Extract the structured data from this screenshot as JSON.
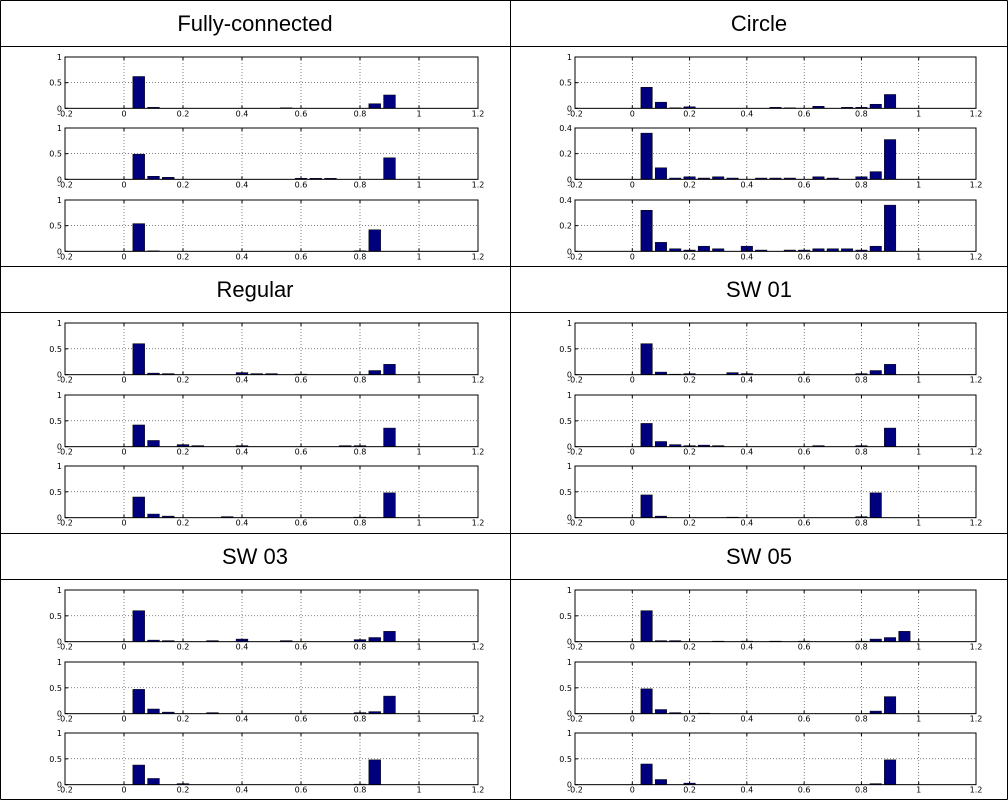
{
  "colors": {
    "bar": "#00007f",
    "bar_edge": "#000000",
    "grid": "#000000",
    "border": "#000000"
  },
  "layout": {
    "rows": 3,
    "cols": 2,
    "panels_per_cell": 3
  },
  "cells": [
    {
      "title": "Fully-connected"
    },
    {
      "title": "Circle"
    },
    {
      "title": "Regular"
    },
    {
      "title": "SW 01"
    },
    {
      "title": "SW 03"
    },
    {
      "title": "SW 05"
    }
  ],
  "chart_data": [
    {
      "type": "bar",
      "title": "Fully-connected",
      "x": [
        0.05,
        0.1,
        0.15,
        0.2,
        0.25,
        0.3,
        0.35,
        0.4,
        0.45,
        0.5,
        0.55,
        0.6,
        0.65,
        0.7,
        0.75,
        0.8,
        0.85,
        0.9,
        0.95
      ],
      "xlim": [
        -0.2,
        1.2
      ],
      "xticks": [
        "-0.2",
        "0",
        "0.2",
        "0.4",
        "0.6",
        "0.8",
        "1",
        "1.2"
      ],
      "panels": [
        {
          "ylim": [
            0,
            1
          ],
          "yticks": [
            "0",
            "0.5",
            "1"
          ],
          "values": [
            0.62,
            0.02,
            0,
            0,
            0,
            0,
            0,
            0,
            0,
            0,
            0.01,
            0,
            0,
            0,
            0,
            0,
            0.09,
            0.26,
            0
          ]
        },
        {
          "ylim": [
            0,
            1
          ],
          "yticks": [
            "0",
            "0.5",
            "1"
          ],
          "values": [
            0.49,
            0.06,
            0.04,
            0,
            0,
            0,
            0,
            0,
            0,
            0,
            0,
            0.02,
            0.02,
            0.02,
            0,
            0,
            0,
            0.42,
            0
          ]
        },
        {
          "ylim": [
            0,
            1
          ],
          "yticks": [
            "0",
            "0.5",
            "1"
          ],
          "values": [
            0.54,
            0.01,
            0,
            0,
            0,
            0,
            0,
            0,
            0,
            0,
            0,
            0,
            0,
            0,
            0,
            0.01,
            0.42,
            0,
            0
          ]
        }
      ]
    },
    {
      "type": "bar",
      "title": "Circle",
      "x": [
        0.05,
        0.1,
        0.15,
        0.2,
        0.25,
        0.3,
        0.35,
        0.4,
        0.45,
        0.5,
        0.55,
        0.6,
        0.65,
        0.7,
        0.75,
        0.8,
        0.85,
        0.9,
        0.95
      ],
      "xlim": [
        -0.2,
        1.2
      ],
      "xticks": [
        "-0.2",
        "0",
        "0.2",
        "0.4",
        "0.6",
        "0.8",
        "1",
        "1.2"
      ],
      "panels": [
        {
          "ylim": [
            0,
            1
          ],
          "yticks": [
            "0",
            "0.5",
            "1"
          ],
          "values": [
            0.41,
            0.12,
            0.01,
            0.03,
            0,
            0,
            0,
            0,
            0,
            0.02,
            0.01,
            0,
            0.04,
            0,
            0.02,
            0.02,
            0.08,
            0.27,
            0
          ]
        },
        {
          "ylim": [
            0,
            0.4
          ],
          "yticks": [
            "0",
            "0.2",
            "0.4"
          ],
          "values": [
            0.36,
            0.09,
            0.01,
            0.02,
            0.01,
            0.02,
            0.01,
            0,
            0.01,
            0.01,
            0.01,
            0,
            0.02,
            0.01,
            0,
            0.02,
            0.06,
            0.31,
            0
          ]
        },
        {
          "ylim": [
            0,
            0.4
          ],
          "yticks": [
            "0",
            "0.2",
            "0.4"
          ],
          "values": [
            0.32,
            0.07,
            0.02,
            0.01,
            0.04,
            0.02,
            0,
            0.04,
            0.01,
            0,
            0.01,
            0.01,
            0.02,
            0.02,
            0.02,
            0.01,
            0.04,
            0.36,
            0
          ]
        }
      ]
    },
    {
      "type": "bar",
      "title": "Regular",
      "x": [
        0.05,
        0.1,
        0.15,
        0.2,
        0.25,
        0.3,
        0.35,
        0.4,
        0.45,
        0.5,
        0.55,
        0.6,
        0.65,
        0.7,
        0.75,
        0.8,
        0.85,
        0.9,
        0.95
      ],
      "xlim": [
        -0.2,
        1.2
      ],
      "xticks": [
        "-0.2",
        "0",
        "0.2",
        "0.4",
        "0.6",
        "0.8",
        "1",
        "1.2"
      ],
      "panels": [
        {
          "ylim": [
            0,
            1
          ],
          "yticks": [
            "0",
            "0.5",
            "1"
          ],
          "values": [
            0.6,
            0.03,
            0.02,
            0,
            0,
            0,
            0,
            0.04,
            0.02,
            0.02,
            0,
            0.01,
            0,
            0,
            0,
            0,
            0.08,
            0.2,
            0
          ]
        },
        {
          "ylim": [
            0,
            1
          ],
          "yticks": [
            "0",
            "0.5",
            "1"
          ],
          "values": [
            0.42,
            0.12,
            0,
            0.04,
            0.02,
            0,
            0,
            0.02,
            0,
            0,
            0,
            0,
            0,
            0,
            0.02,
            0.02,
            0,
            0.36,
            0
          ]
        },
        {
          "ylim": [
            0,
            1
          ],
          "yticks": [
            "0",
            "0.5",
            "1"
          ],
          "values": [
            0.4,
            0.07,
            0.03,
            0,
            0,
            0,
            0.02,
            0,
            0,
            0,
            0,
            0,
            0,
            0,
            0,
            0.01,
            0,
            0.48,
            0
          ]
        }
      ]
    },
    {
      "type": "bar",
      "title": "SW 01",
      "x": [
        0.05,
        0.1,
        0.15,
        0.2,
        0.25,
        0.3,
        0.35,
        0.4,
        0.45,
        0.5,
        0.55,
        0.6,
        0.65,
        0.7,
        0.75,
        0.8,
        0.85,
        0.9,
        0.95
      ],
      "xlim": [
        -0.2,
        1.2
      ],
      "xticks": [
        "-0.2",
        "0",
        "0.2",
        "0.4",
        "0.6",
        "0.8",
        "1",
        "1.2"
      ],
      "panels": [
        {
          "ylim": [
            0,
            1
          ],
          "yticks": [
            "0",
            "0.5",
            "1"
          ],
          "values": [
            0.6,
            0.05,
            0.01,
            0.02,
            0,
            0,
            0.04,
            0.02,
            0,
            0,
            0,
            0.01,
            0,
            0,
            0,
            0.02,
            0.08,
            0.2,
            0
          ]
        },
        {
          "ylim": [
            0,
            1
          ],
          "yticks": [
            "0",
            "0.5",
            "1"
          ],
          "values": [
            0.45,
            0.1,
            0.04,
            0.02,
            0.03,
            0.02,
            0,
            0,
            0,
            0,
            0,
            0,
            0.02,
            0,
            0,
            0.02,
            0,
            0.36,
            0
          ]
        },
        {
          "ylim": [
            0,
            1
          ],
          "yticks": [
            "0",
            "0.5",
            "1"
          ],
          "values": [
            0.44,
            0.03,
            0,
            0,
            0,
            0,
            0.01,
            0,
            0,
            0,
            0,
            0,
            0,
            0,
            0,
            0.02,
            0.48,
            0,
            0
          ]
        }
      ]
    },
    {
      "type": "bar",
      "title": "SW 03",
      "x": [
        0.05,
        0.1,
        0.15,
        0.2,
        0.25,
        0.3,
        0.35,
        0.4,
        0.45,
        0.5,
        0.55,
        0.6,
        0.65,
        0.7,
        0.75,
        0.8,
        0.85,
        0.9,
        0.95
      ],
      "xlim": [
        -0.2,
        1.2
      ],
      "xticks": [
        "-0.2",
        "0",
        "0.2",
        "0.4",
        "0.6",
        "0.8",
        "1",
        "1.2"
      ],
      "panels": [
        {
          "ylim": [
            0,
            1
          ],
          "yticks": [
            "0",
            "0.5",
            "1"
          ],
          "values": [
            0.6,
            0.03,
            0.02,
            0,
            0,
            0.02,
            0,
            0.05,
            0,
            0,
            0.02,
            0,
            0,
            0,
            0,
            0.04,
            0.08,
            0.2,
            0
          ]
        },
        {
          "ylim": [
            0,
            1
          ],
          "yticks": [
            "0",
            "0.5",
            "1"
          ],
          "values": [
            0.47,
            0.09,
            0.03,
            0,
            0,
            0.02,
            0,
            0,
            0,
            0,
            0,
            0,
            0,
            0,
            0,
            0.02,
            0.04,
            0.34,
            0
          ]
        },
        {
          "ylim": [
            0,
            1
          ],
          "yticks": [
            "0",
            "0.5",
            "1"
          ],
          "values": [
            0.38,
            0.12,
            0,
            0.02,
            0,
            0,
            0,
            0,
            0,
            0,
            0,
            0,
            0,
            0,
            0,
            0.01,
            0.48,
            0,
            0
          ]
        }
      ]
    },
    {
      "type": "bar",
      "title": "SW 05",
      "x": [
        0.05,
        0.1,
        0.15,
        0.2,
        0.25,
        0.3,
        0.35,
        0.4,
        0.45,
        0.5,
        0.55,
        0.6,
        0.65,
        0.7,
        0.75,
        0.8,
        0.85,
        0.9,
        0.95
      ],
      "xlim": [
        -0.2,
        1.2
      ],
      "xticks": [
        "-0.2",
        "0",
        "0.2",
        "0.4",
        "0.6",
        "0.8",
        "1",
        "1.2"
      ],
      "panels": [
        {
          "ylim": [
            0,
            1
          ],
          "yticks": [
            "0",
            "0.5",
            "1"
          ],
          "values": [
            0.6,
            0.02,
            0.02,
            0,
            0,
            0.01,
            0,
            0.01,
            0,
            0.01,
            0,
            0.01,
            0,
            0,
            0,
            0.01,
            0.05,
            0.08,
            0.2
          ]
        },
        {
          "ylim": [
            0,
            1
          ],
          "yticks": [
            "0",
            "0.5",
            "1"
          ],
          "values": [
            0.48,
            0.08,
            0.02,
            0,
            0.01,
            0,
            0,
            0,
            0,
            0,
            0,
            0,
            0,
            0,
            0,
            0,
            0.05,
            0.33,
            0
          ]
        },
        {
          "ylim": [
            0,
            1
          ],
          "yticks": [
            "0",
            "0.5",
            "1"
          ],
          "values": [
            0.4,
            0.1,
            0,
            0.03,
            0,
            0,
            0,
            0,
            0,
            0,
            0,
            0,
            0,
            0,
            0,
            0,
            0.02,
            0.48,
            0
          ]
        }
      ]
    }
  ]
}
